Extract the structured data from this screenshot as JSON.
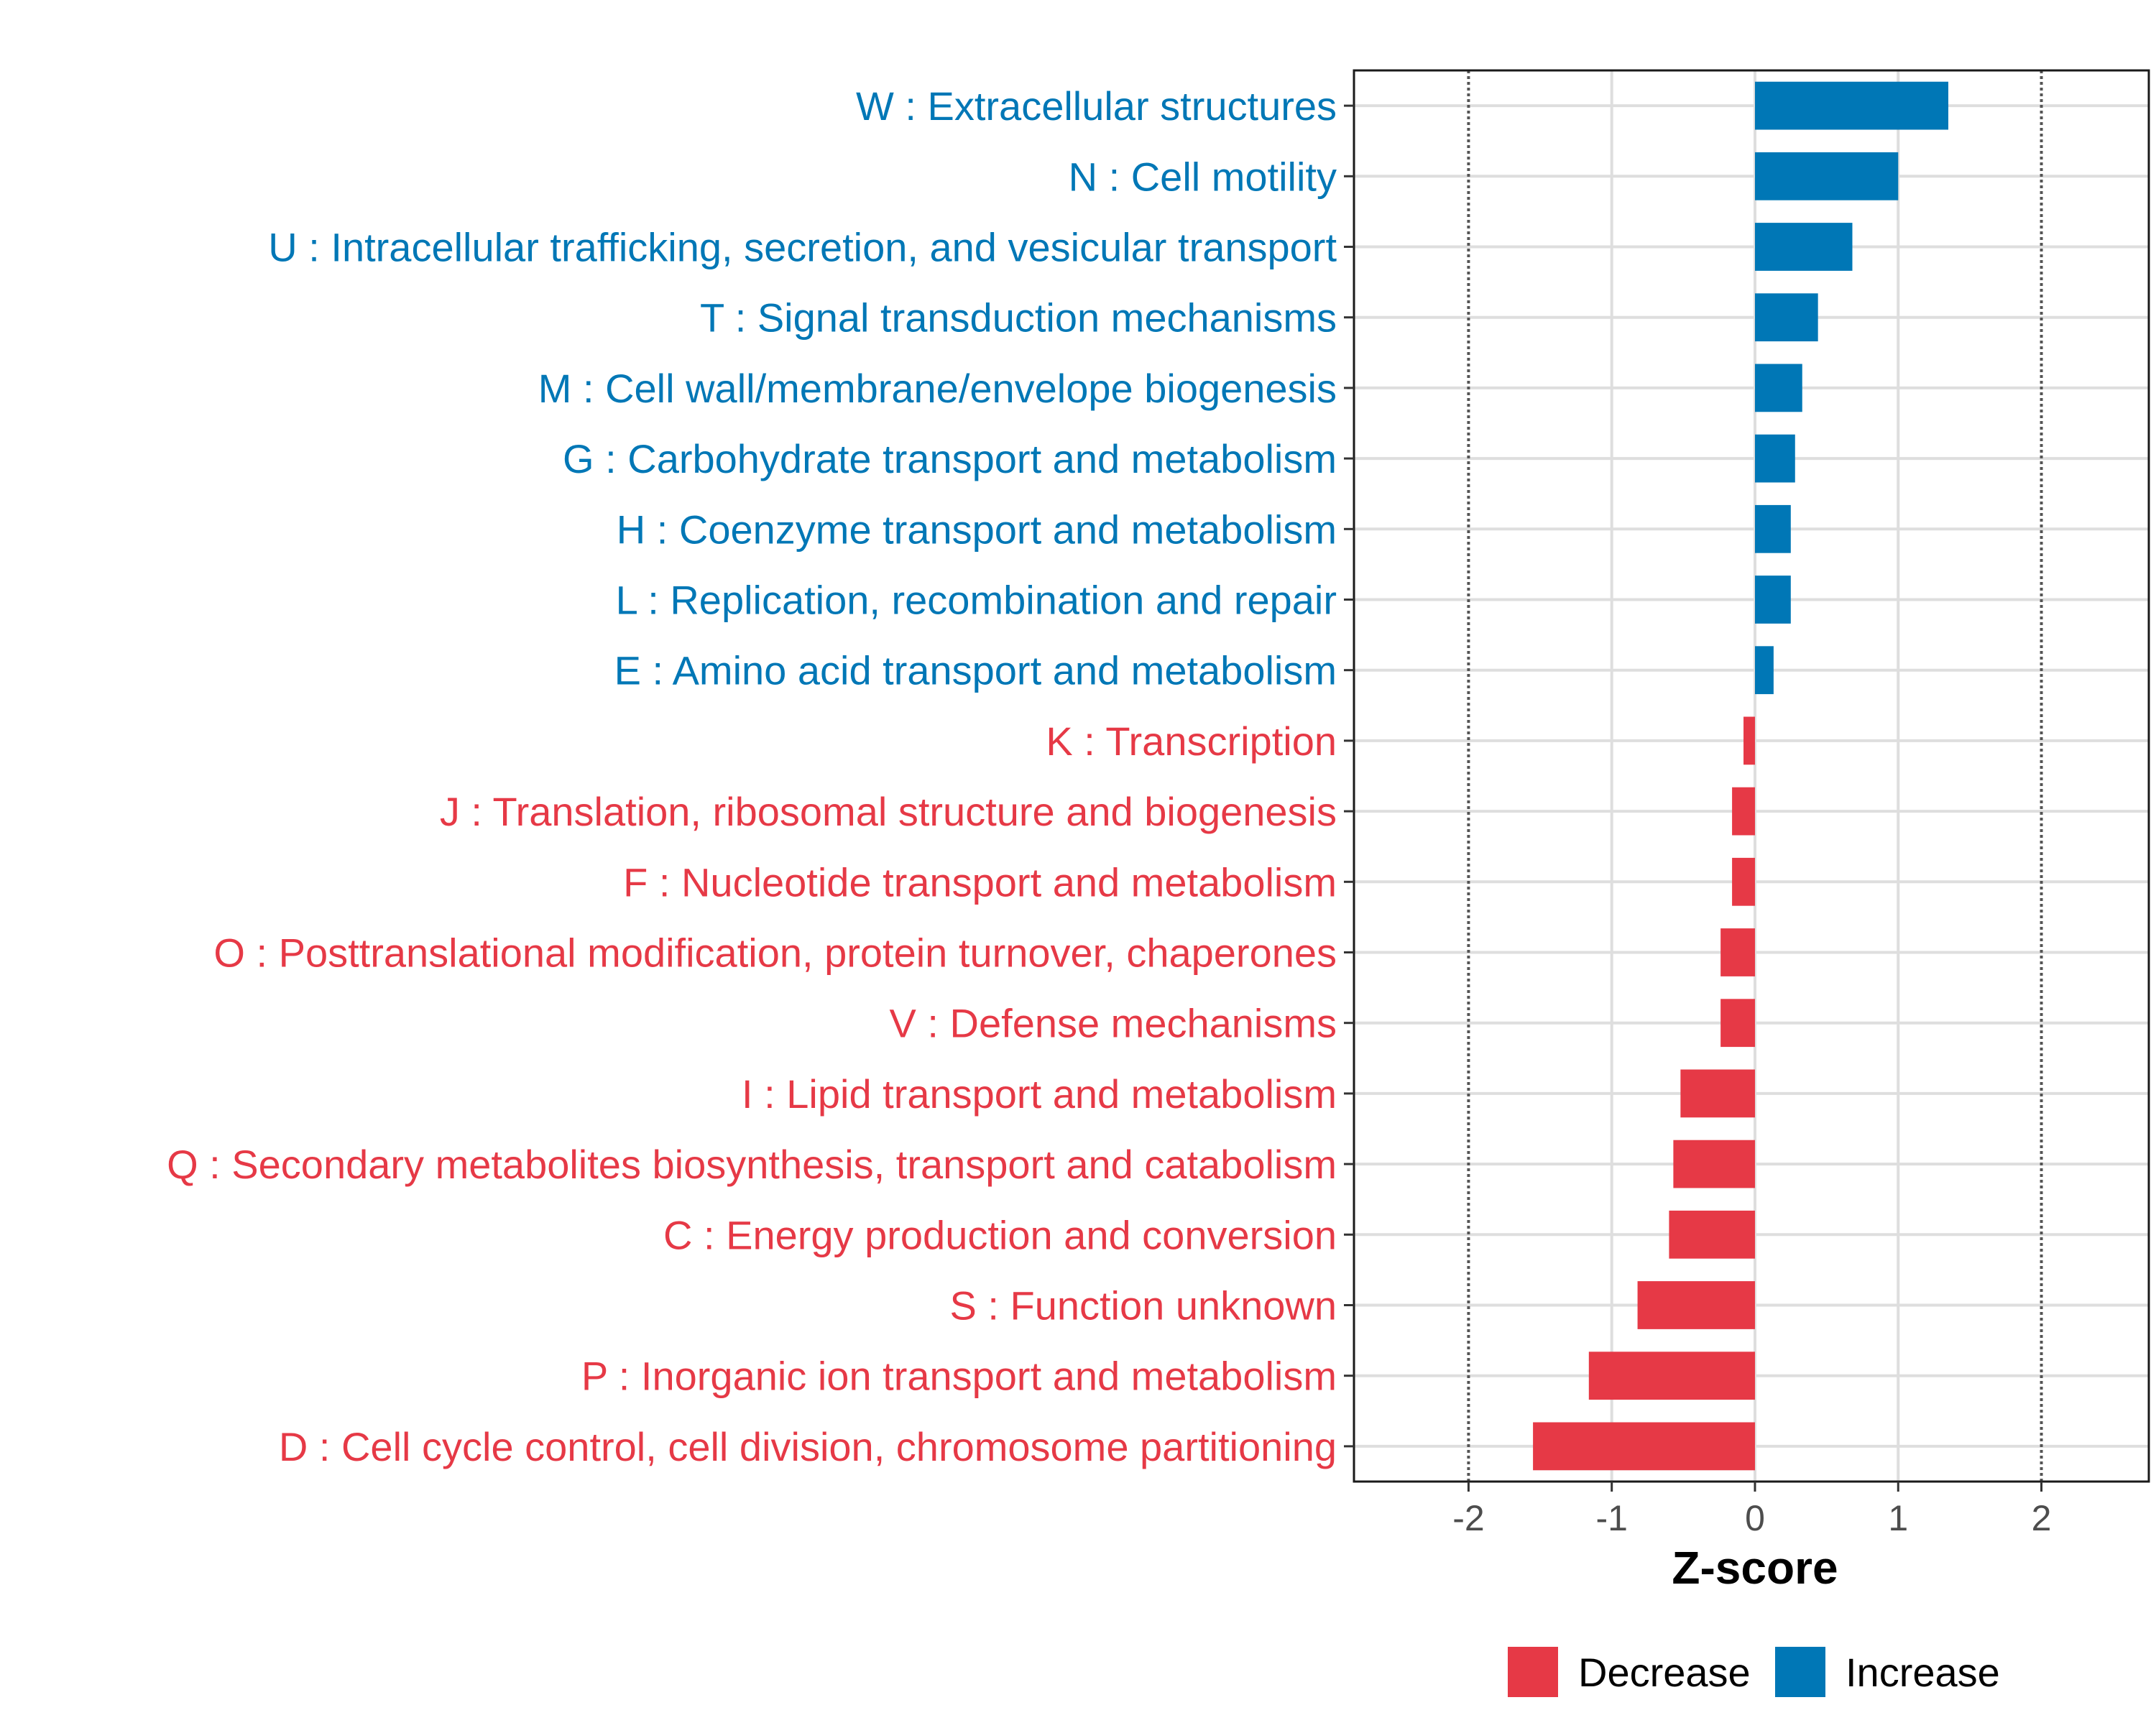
{
  "chart_data": {
    "type": "bar",
    "orientation": "horizontal",
    "title": "",
    "xlabel": "Z-score",
    "ylabel": "",
    "xlim": [
      -2.8,
      2.75
    ],
    "xticks": [
      -2,
      -1,
      0,
      1,
      2
    ],
    "xtick_labels": [
      "-2",
      "-1",
      "0",
      "1",
      "2"
    ],
    "reference_lines": [
      -2,
      2
    ],
    "categories": [
      "W : Extracellular structures",
      "N : Cell motility",
      "U : Intracellular trafficking, secretion, and vesicular transport",
      "T : Signal transduction mechanisms",
      "M : Cell wall/membrane/envelope biogenesis",
      "G : Carbohydrate transport and metabolism",
      "H : Coenzyme transport and metabolism",
      "L : Replication, recombination and repair",
      "E : Amino acid transport and metabolism",
      "K : Transcription",
      "J : Translation, ribosomal structure and biogenesis",
      "F : Nucleotide transport and metabolism",
      "O : Posttranslational modification, protein turnover, chaperones",
      "V : Defense mechanisms",
      "I : Lipid transport and metabolism",
      "Q : Secondary metabolites biosynthesis, transport and catabolism",
      "C : Energy production and conversion",
      "S : Function unknown",
      "P : Inorganic ion transport and metabolism",
      "D : Cell cycle control, cell division, chromosome partitioning"
    ],
    "values": [
      1.35,
      1.0,
      0.68,
      0.44,
      0.33,
      0.28,
      0.25,
      0.25,
      0.13,
      -0.08,
      -0.16,
      -0.16,
      -0.24,
      -0.24,
      -0.52,
      -0.57,
      -0.6,
      -0.82,
      -1.16,
      -1.55
    ],
    "groups": [
      "Increase",
      "Increase",
      "Increase",
      "Increase",
      "Increase",
      "Increase",
      "Increase",
      "Increase",
      "Increase",
      "Decrease",
      "Decrease",
      "Decrease",
      "Decrease",
      "Decrease",
      "Decrease",
      "Decrease",
      "Decrease",
      "Decrease",
      "Decrease",
      "Decrease"
    ],
    "legend": {
      "position": "bottom",
      "entries": [
        {
          "label": "Decrease",
          "color": "#E63946"
        },
        {
          "label": "Increase",
          "color": "#0077B6"
        }
      ]
    },
    "colors": {
      "Increase": "#0077B6",
      "Decrease": "#E63946"
    },
    "grid": true
  }
}
